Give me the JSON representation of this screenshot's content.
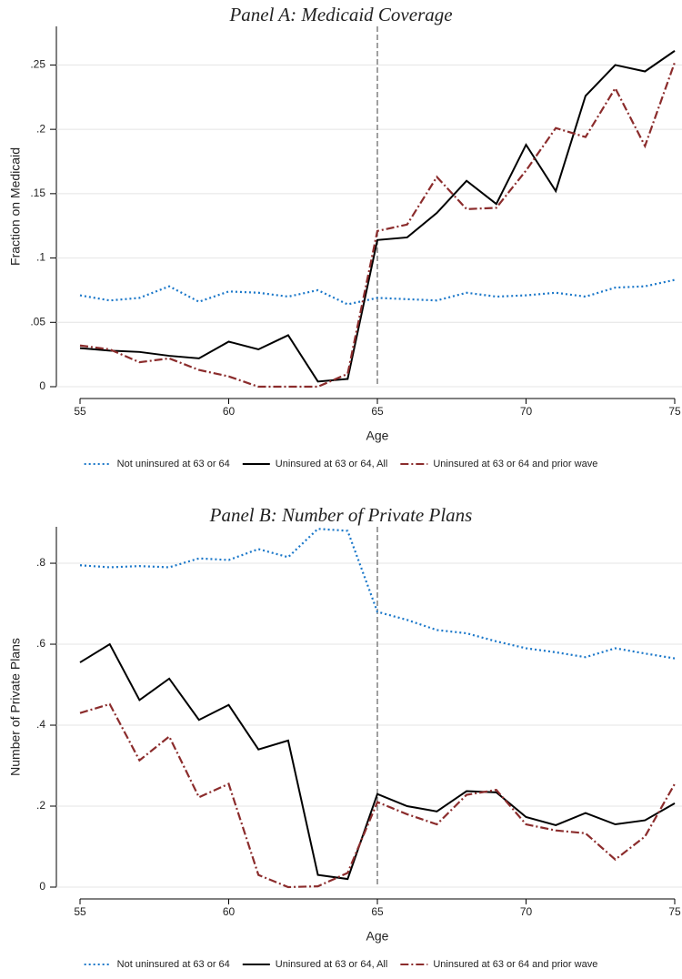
{
  "chart_data": [
    {
      "type": "line",
      "title": "Panel A: Medicaid Coverage",
      "x_label": "Age",
      "y_label": "Fraction on Medicaid",
      "x": [
        55,
        56,
        57,
        58,
        59,
        60,
        61,
        62,
        63,
        64,
        65,
        66,
        67,
        68,
        69,
        70,
        71,
        72,
        73,
        74,
        75
      ],
      "xlim": [
        55,
        75
      ],
      "xticks": [
        55,
        60,
        65,
        70,
        75
      ],
      "ylim": [
        0,
        0.28
      ],
      "yticks": [
        0,
        {
          "value": 0.05,
          "label": ".05"
        },
        {
          "value": 0.1,
          "label": ".1"
        },
        {
          "value": 0.15,
          "label": ".15"
        },
        {
          "value": 0.2,
          "label": ".2"
        },
        {
          "value": 0.25,
          "label": ".25"
        }
      ],
      "grid": true,
      "vline": 65,
      "series": [
        {
          "name": "Not uninsured at 63 or 64",
          "color": "#1a77c9",
          "dash": "dot",
          "values": [
            0.071,
            0.067,
            0.069,
            0.078,
            0.066,
            0.074,
            0.073,
            0.07,
            0.075,
            0.064,
            0.069,
            0.068,
            0.067,
            0.073,
            0.07,
            0.071,
            0.073,
            0.07,
            0.077,
            0.078,
            0.083
          ]
        },
        {
          "name": "Uninsured at 63 or 64, All",
          "color": "#000000",
          "dash": "solid",
          "values": [
            0.03,
            0.028,
            0.027,
            0.024,
            0.022,
            0.035,
            0.029,
            0.04,
            0.004,
            0.006,
            0.114,
            0.116,
            0.135,
            0.16,
            0.142,
            0.188,
            0.152,
            0.226,
            0.25,
            0.245,
            0.261
          ]
        },
        {
          "name": "Uninsured at 63 or 64 and prior wave",
          "color": "#8b2c2c",
          "dash": "dashdot",
          "values": [
            0.032,
            0.029,
            0.019,
            0.022,
            0.013,
            0.008,
            0.0,
            0.0,
            0.0,
            0.01,
            0.121,
            0.126,
            0.163,
            0.138,
            0.139,
            0.168,
            0.201,
            0.194,
            0.232,
            0.187,
            0.252
          ]
        }
      ]
    },
    {
      "type": "line",
      "title": "Panel B: Number of Private Plans",
      "x_label": "Age",
      "y_label": "Number of Private Plans",
      "x": [
        55,
        56,
        57,
        58,
        59,
        60,
        61,
        62,
        63,
        64,
        65,
        66,
        67,
        68,
        69,
        70,
        71,
        72,
        73,
        74,
        75
      ],
      "xlim": [
        55,
        75
      ],
      "xticks": [
        55,
        60,
        65,
        70,
        75
      ],
      "ylim": [
        0,
        0.89
      ],
      "yticks": [
        0,
        {
          "value": 0.2,
          "label": ".2"
        },
        {
          "value": 0.4,
          "label": ".4"
        },
        {
          "value": 0.6,
          "label": ".6"
        },
        {
          "value": 0.8,
          "label": ".8"
        }
      ],
      "grid": true,
      "vline": 65,
      "series": [
        {
          "name": "Not uninsured at 63 or 64",
          "color": "#1a77c9",
          "dash": "dot",
          "values": [
            0.795,
            0.79,
            0.793,
            0.79,
            0.812,
            0.808,
            0.835,
            0.815,
            0.885,
            0.88,
            0.68,
            0.66,
            0.635,
            0.627,
            0.607,
            0.59,
            0.58,
            0.568,
            0.59,
            0.577,
            0.565
          ]
        },
        {
          "name": "Uninsured at 63 or 64, All",
          "color": "#000000",
          "dash": "solid",
          "values": [
            0.555,
            0.6,
            0.462,
            0.515,
            0.413,
            0.45,
            0.34,
            0.362,
            0.03,
            0.02,
            0.23,
            0.2,
            0.187,
            0.237,
            0.234,
            0.173,
            0.153,
            0.183,
            0.155,
            0.165,
            0.207
          ]
        },
        {
          "name": "Uninsured at 63 or 64 and prior wave",
          "color": "#8b2c2c",
          "dash": "dashdot",
          "values": [
            0.43,
            0.452,
            0.313,
            0.372,
            0.222,
            0.255,
            0.03,
            0.0,
            0.002,
            0.035,
            0.21,
            0.18,
            0.155,
            0.228,
            0.24,
            0.155,
            0.14,
            0.133,
            0.068,
            0.125,
            0.255
          ]
        }
      ]
    }
  ]
}
